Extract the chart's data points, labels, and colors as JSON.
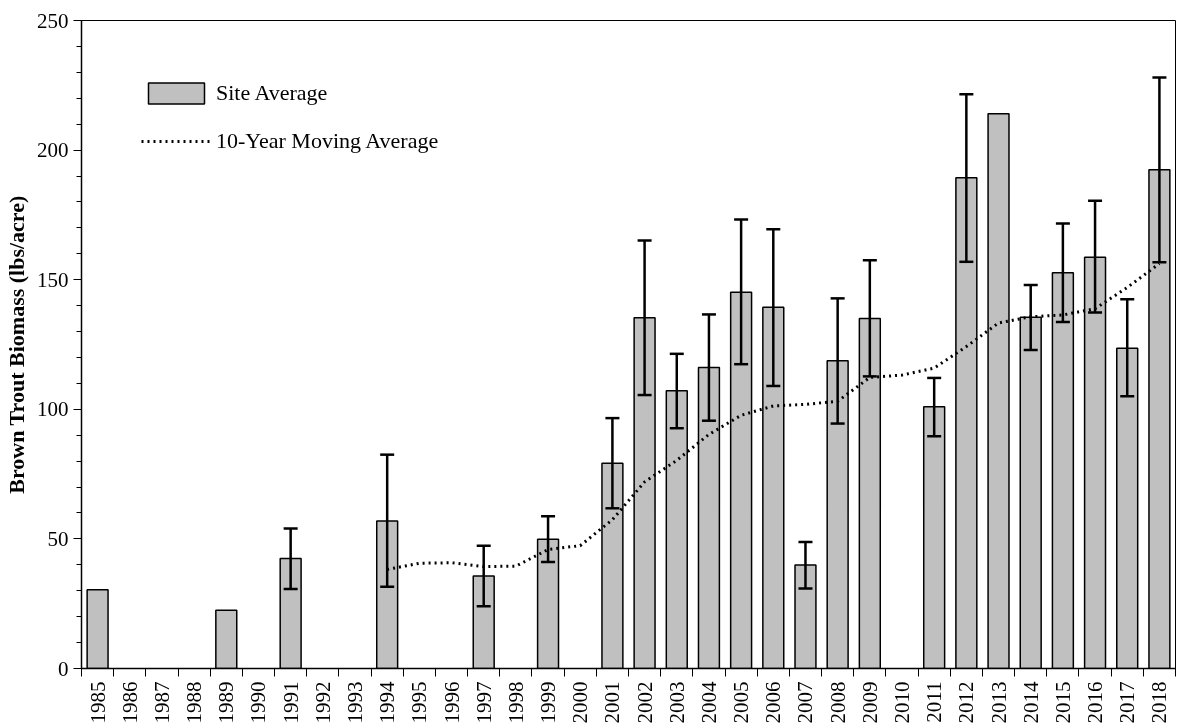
{
  "chart_data": {
    "type": "bar",
    "ylabel": "Brown Trout Biomass (lbs/acre)",
    "categories": [
      "1985",
      "1986",
      "1987",
      "1988",
      "1989",
      "1990",
      "1991",
      "1992",
      "1993",
      "1994",
      "1995",
      "1996",
      "1997",
      "1998",
      "1999",
      "2000",
      "2001",
      "2002",
      "2003",
      "2004",
      "2005",
      "2006",
      "2007",
      "2008",
      "2009",
      "2010",
      "2011",
      "2012",
      "2013",
      "2014",
      "2015",
      "2016",
      "2017",
      "2018"
    ],
    "series": [
      {
        "name": "Site Average",
        "color": "#c0c0c0",
        "values": [
          30.4,
          null,
          null,
          null,
          22.5,
          null,
          42.4,
          null,
          null,
          56.9,
          null,
          null,
          35.7,
          null,
          49.9,
          null,
          79.2,
          135.3,
          107.2,
          116.1,
          145.2,
          139.4,
          39.9,
          118.7,
          135,
          null,
          101,
          189.3,
          214,
          135.5,
          152.7,
          158.7,
          123.6,
          192.4
        ],
        "errors": [
          null,
          null,
          null,
          null,
          null,
          null,
          [
            30.7,
            54
          ],
          null,
          null,
          [
            31.5,
            82.5
          ],
          null,
          null,
          [
            24,
            47.4
          ],
          null,
          [
            41.1,
            58.7
          ],
          null,
          [
            61.8,
            96.6
          ],
          [
            105.5,
            165.1
          ],
          [
            92.7,
            121.4
          ],
          [
            95.6,
            136.6
          ],
          [
            117.4,
            173.2
          ],
          [
            109,
            169.5
          ],
          [
            30.9,
            48.8
          ],
          [
            94.5,
            142.8
          ],
          [
            112.7,
            157.5
          ],
          null,
          [
            89.6,
            112.1
          ],
          [
            156.9,
            221.5
          ],
          null,
          [
            122.9,
            148
          ],
          [
            133.7,
            171.7
          ],
          [
            137.3,
            180.5
          ],
          [
            105,
            142.5
          ],
          [
            156.7,
            228
          ]
        ]
      },
      {
        "name": "10-Year Moving Average",
        "type": "line",
        "color": "#000000",
        "line_style": "dotted",
        "values": [
          null,
          null,
          null,
          null,
          null,
          null,
          null,
          null,
          null,
          38.2,
          40.6,
          40.8,
          39.3,
          39.5,
          45.9,
          47.4,
          57.4,
          72,
          80.3,
          90.3,
          97.7,
          101.3,
          101.9,
          103.1,
          112.3,
          113.2,
          115.9,
          124.2,
          133.3,
          135.7,
          136.4,
          138.8,
          147,
          156.2
        ]
      }
    ],
    "ylim": [
      0,
      250
    ],
    "yticks": [
      0,
      50,
      100,
      150,
      200,
      250
    ],
    "grid": false,
    "legend": "top left"
  }
}
